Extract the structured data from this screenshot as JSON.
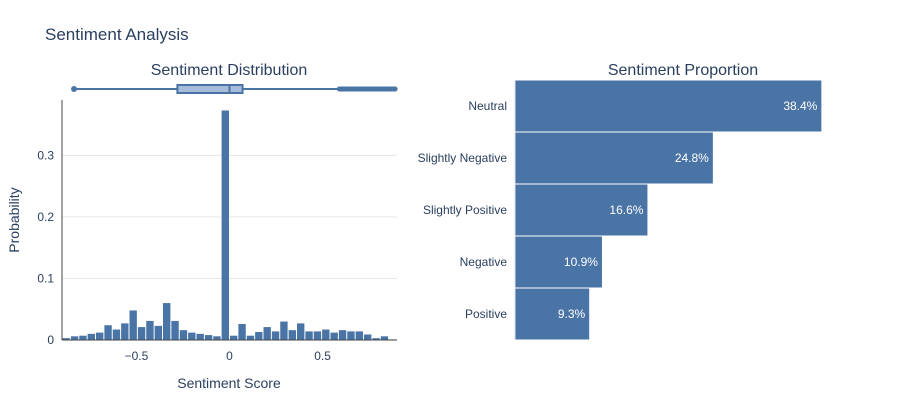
{
  "title": "Sentiment Analysis",
  "colors": {
    "bar": "#4a74a6",
    "box_fill": "#a7bcd9",
    "grid": "#e5e7eb",
    "axis": "#444444",
    "text": "#2a3f5f",
    "label_inside": "#ffffff"
  },
  "chart_data": [
    {
      "type": "histogram",
      "title": "Sentiment Distribution",
      "xlabel": "Sentiment Score",
      "ylabel": "Probability",
      "xlim": [
        -0.9,
        0.9
      ],
      "ylim": [
        0,
        0.39
      ],
      "xticks": [
        -0.5,
        0,
        0.5
      ],
      "xtick_labels": [
        "−0.5",
        "0",
        "0.5"
      ],
      "yticks": [
        0,
        0.1,
        0.2,
        0.3
      ],
      "ytick_labels": [
        "0",
        "0.1",
        "0.2",
        "0.3"
      ],
      "grid": true,
      "bin_width": 0.045,
      "bins": [
        {
          "x0": -0.9,
          "value": 0.003
        },
        {
          "x0": -0.855,
          "value": 0.006
        },
        {
          "x0": -0.81,
          "value": 0.007
        },
        {
          "x0": -0.765,
          "value": 0.01
        },
        {
          "x0": -0.72,
          "value": 0.012
        },
        {
          "x0": -0.675,
          "value": 0.024
        },
        {
          "x0": -0.63,
          "value": 0.017
        },
        {
          "x0": -0.585,
          "value": 0.027
        },
        {
          "x0": -0.54,
          "value": 0.048
        },
        {
          "x0": -0.495,
          "value": 0.021
        },
        {
          "x0": -0.45,
          "value": 0.031
        },
        {
          "x0": -0.405,
          "value": 0.023
        },
        {
          "x0": -0.36,
          "value": 0.06
        },
        {
          "x0": -0.315,
          "value": 0.031
        },
        {
          "x0": -0.27,
          "value": 0.016
        },
        {
          "x0": -0.225,
          "value": 0.012
        },
        {
          "x0": -0.18,
          "value": 0.01
        },
        {
          "x0": -0.135,
          "value": 0.008
        },
        {
          "x0": -0.09,
          "value": 0.006
        },
        {
          "x0": -0.045,
          "value": 0.373
        },
        {
          "x0": 0.0,
          "value": 0.007
        },
        {
          "x0": 0.045,
          "value": 0.026
        },
        {
          "x0": 0.09,
          "value": 0.007
        },
        {
          "x0": 0.135,
          "value": 0.013
        },
        {
          "x0": 0.18,
          "value": 0.021
        },
        {
          "x0": 0.225,
          "value": 0.014
        },
        {
          "x0": 0.27,
          "value": 0.03
        },
        {
          "x0": 0.315,
          "value": 0.016
        },
        {
          "x0": 0.36,
          "value": 0.027
        },
        {
          "x0": 0.405,
          "value": 0.014
        },
        {
          "x0": 0.45,
          "value": 0.014
        },
        {
          "x0": 0.495,
          "value": 0.017
        },
        {
          "x0": 0.54,
          "value": 0.012
        },
        {
          "x0": 0.585,
          "value": 0.016
        },
        {
          "x0": 0.63,
          "value": 0.014
        },
        {
          "x0": 0.675,
          "value": 0.014
        },
        {
          "x0": 0.72,
          "value": 0.009
        },
        {
          "x0": 0.765,
          "value": 0.003
        },
        {
          "x0": 0.81,
          "value": 0.006
        },
        {
          "x0": 0.855,
          "value": 0.001
        }
      ],
      "marginal_box": {
        "lower_whisker": -0.83,
        "q1": -0.28,
        "median": 0.0,
        "q3": 0.07,
        "upper_whisker": 0.59,
        "outlier_range": [
          0.59,
          0.89
        ]
      }
    },
    {
      "type": "bar",
      "orientation": "horizontal",
      "title": "Sentiment Proportion",
      "categories": [
        "Neutral",
        "Slightly Negative",
        "Slightly Positive",
        "Negative",
        "Positive"
      ],
      "values": [
        38.4,
        24.8,
        16.6,
        10.9,
        9.3
      ],
      "value_labels": [
        "38.4%",
        "24.8%",
        "16.6%",
        "10.9%",
        "9.3%"
      ],
      "xlim": [
        0,
        46
      ]
    }
  ]
}
